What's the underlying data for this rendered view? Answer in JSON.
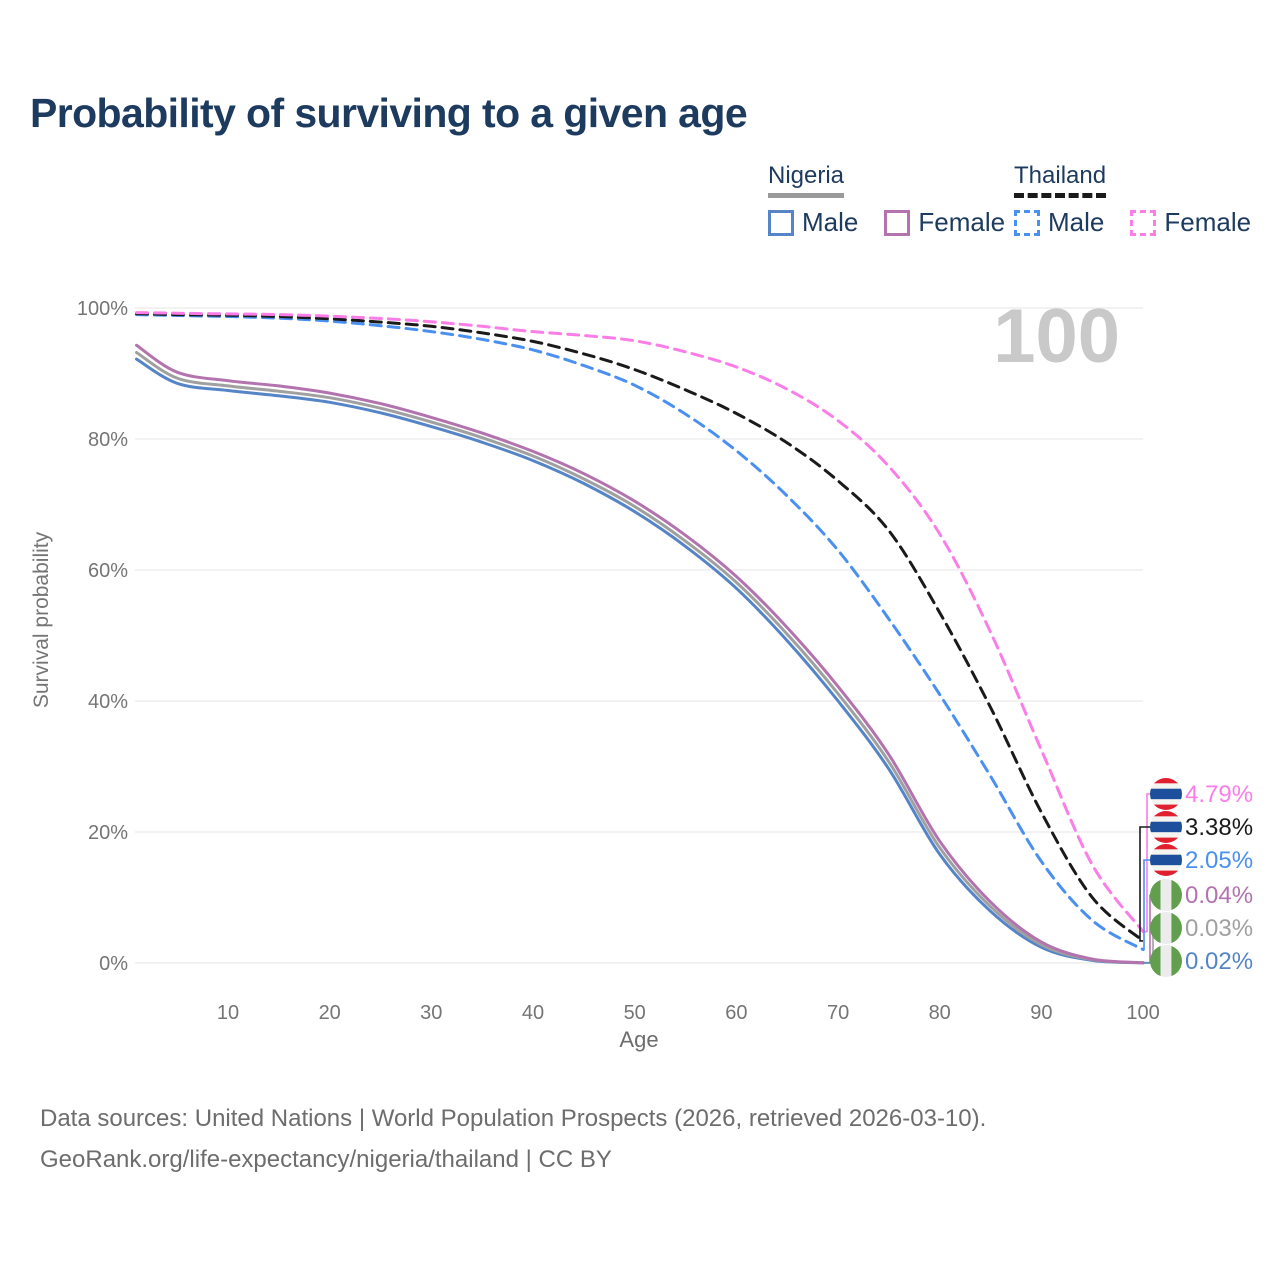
{
  "title": "Probability of surviving to a given age",
  "watermark": "100",
  "legend": {
    "groups": [
      {
        "country": "Nigeria",
        "line_style": "solid",
        "underline_color": "#9a9a9a",
        "items": [
          {
            "label": "Male",
            "color": "#5585c7",
            "dashed": false
          },
          {
            "label": "Female",
            "color": "#b273af",
            "dashed": false
          }
        ]
      },
      {
        "country": "Thailand",
        "line_style": "dashed",
        "underline_color": "#1a1a1a",
        "items": [
          {
            "label": "Male",
            "color": "#4a90f0",
            "dashed": true
          },
          {
            "label": "Female",
            "color": "#fb7de7",
            "dashed": true
          }
        ]
      }
    ]
  },
  "chart_data": {
    "type": "line",
    "title": "Probability of surviving to a given age",
    "xlabel": "Age",
    "ylabel": "Survival probability",
    "xlim": [
      1,
      100
    ],
    "ylim": [
      0,
      100
    ],
    "grid": true,
    "legend_position": "top-right",
    "x_ticks": [
      10,
      20,
      30,
      40,
      50,
      60,
      70,
      80,
      90,
      100
    ],
    "y_ticks": [
      "0%",
      "20%",
      "40%",
      "60%",
      "80%",
      "100%"
    ],
    "y_tick_values": [
      0,
      20,
      40,
      60,
      80,
      100
    ],
    "ages": [
      1,
      5,
      10,
      15,
      20,
      25,
      30,
      35,
      40,
      45,
      50,
      55,
      60,
      65,
      70,
      75,
      80,
      85,
      90,
      95,
      100
    ],
    "series": [
      {
        "name": "Nigeria Male",
        "country": "Nigeria",
        "sex": "Male",
        "style": "solid",
        "color": "#5585c7",
        "flag": "nigeria",
        "end_label": "0.02%",
        "end_value": 0.02,
        "values": [
          92.2,
          88.5,
          87.4,
          86.6,
          85.6,
          84.0,
          81.9,
          79.5,
          76.7,
          73.2,
          68.9,
          63.6,
          57.2,
          49.2,
          40.0,
          29.6,
          16.6,
          7.9,
          2.4,
          0.4,
          0.02
        ]
      },
      {
        "name": "Nigeria Total",
        "country": "Nigeria",
        "sex": "Both",
        "style": "solid",
        "color": "#a0a0a0",
        "flag": "nigeria",
        "end_label": "0.03%",
        "end_value": 0.03,
        "values": [
          93.2,
          89.3,
          88.1,
          87.3,
          86.3,
          84.7,
          82.6,
          80.2,
          77.4,
          73.9,
          69.7,
          64.4,
          58.1,
          50.2,
          41.1,
          30.7,
          17.6,
          8.6,
          2.8,
          0.5,
          0.03
        ]
      },
      {
        "name": "Nigeria Female",
        "country": "Nigeria",
        "sex": "Female",
        "style": "solid",
        "color": "#b273af",
        "flag": "nigeria",
        "end_label": "0.04%",
        "end_value": 0.04,
        "values": [
          94.3,
          90.2,
          88.9,
          88.1,
          87.0,
          85.4,
          83.3,
          80.9,
          78.1,
          74.7,
          70.5,
          65.3,
          59.0,
          51.2,
          42.2,
          31.8,
          18.6,
          9.3,
          3.2,
          0.6,
          0.04
        ]
      },
      {
        "name": "Thailand Male",
        "country": "Thailand",
        "sex": "Male",
        "style": "dashed",
        "color": "#4a90f0",
        "flag": "thailand",
        "end_label": "2.05%",
        "end_value": 2.05,
        "values": [
          99.0,
          98.85,
          98.7,
          98.45,
          98.0,
          97.3,
          96.4,
          95.2,
          93.6,
          91.2,
          88.2,
          83.8,
          78.2,
          71.3,
          63.0,
          52.5,
          41.0,
          28.5,
          15.5,
          6.5,
          2.05
        ]
      },
      {
        "name": "Thailand Total",
        "country": "Thailand",
        "sex": "Both",
        "style": "dashed",
        "color": "#1a1a1a",
        "flag": "thailand",
        "end_label": "3.38%",
        "end_value": 3.38,
        "values": [
          99.15,
          99.0,
          98.9,
          98.7,
          98.35,
          97.85,
          97.2,
          96.2,
          94.9,
          93.0,
          90.6,
          87.5,
          83.9,
          79.4,
          73.6,
          66.0,
          53.5,
          39.0,
          23.0,
          10.0,
          3.38
        ]
      },
      {
        "name": "Thailand Female",
        "country": "Thailand",
        "sex": "Female",
        "style": "dashed",
        "color": "#fb7de7",
        "flag": "thailand",
        "end_label": "4.79%",
        "end_value": 4.79,
        "values": [
          99.3,
          99.2,
          99.1,
          99.0,
          98.75,
          98.4,
          97.9,
          97.2,
          96.4,
          95.8,
          95.0,
          93.3,
          91.0,
          87.6,
          82.8,
          75.8,
          65.5,
          50.5,
          32.5,
          15.0,
          4.79
        ]
      }
    ],
    "end_label_order": [
      "Thailand Female",
      "Thailand Total",
      "Thailand Male",
      "Nigeria Female",
      "Nigeria Total",
      "Nigeria Male"
    ]
  },
  "flags": {
    "thailand": {
      "red": "#e01f2f",
      "white": "#f4f4f1",
      "blue": "#1e4f9c"
    },
    "nigeria": {
      "green": "#619f4f",
      "white": "#ececec"
    }
  },
  "colors": {
    "title": "#1d3a5f",
    "axis_text": "#757575",
    "gridline": "#e4e4e4",
    "watermark": "#c9c9c9",
    "footer_text": "#6d6d6d"
  },
  "footer": {
    "line1": "Data sources: United Nations | World Population Prospects (2026, retrieved 2026-03-10).",
    "line2": "GeoRank.org/life-expectancy/nigeria/thailand | CC BY"
  }
}
